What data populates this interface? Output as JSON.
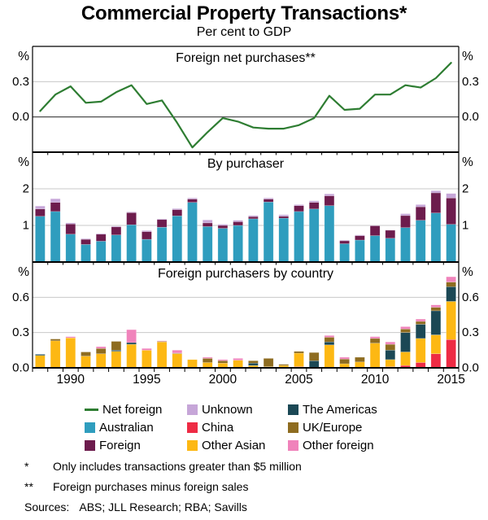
{
  "title": "Commercial Property Transactions*",
  "subtitle": "Per cent to GDP",
  "legend": {
    "items": [
      {
        "label": "Net foreign",
        "color": "#2e7d32",
        "shape": "line"
      },
      {
        "label": "Australian",
        "color": "#2f9dbe",
        "shape": "square"
      },
      {
        "label": "Foreign",
        "color": "#6d1c4d",
        "shape": "square"
      },
      {
        "label": "Unknown",
        "color": "#c6a6d8",
        "shape": "square"
      },
      {
        "label": "China",
        "color": "#ee2b44",
        "shape": "square"
      },
      {
        "label": "Other Asian",
        "color": "#fdb813",
        "shape": "square"
      },
      {
        "label": "The Americas",
        "color": "#1b4855",
        "shape": "square"
      },
      {
        "label": "UK/Europe",
        "color": "#8e6c20",
        "shape": "square"
      },
      {
        "label": "Other foreign",
        "color": "#f083bb",
        "shape": "square"
      }
    ]
  },
  "footnotes": [
    {
      "marker": "*",
      "text": "Only includes transactions greater than $5 million"
    },
    {
      "marker": "**",
      "text": "Foreign purchases minus foreign sales"
    }
  ],
  "sources": {
    "label": "Sources:",
    "text": "ABS; JLL Research; RBA; Savills"
  },
  "chart_data": {
    "type": "multi-panel",
    "years": [
      1988,
      1989,
      1990,
      1991,
      1992,
      1993,
      1994,
      1995,
      1996,
      1997,
      1998,
      1999,
      2000,
      2001,
      2002,
      2003,
      2004,
      2005,
      2006,
      2007,
      2008,
      2009,
      2010,
      2011,
      2012,
      2013,
      2014,
      2015
    ],
    "x_tick_labels": [
      1990,
      1995,
      2000,
      2005,
      2010,
      2015
    ],
    "grid_color": "#c8c8c8",
    "zero_line_color": "#404040",
    "panels": [
      {
        "title": "Foreign net purchases**",
        "type": "line",
        "unit": "%",
        "ylim": [
          -0.3,
          0.6
        ],
        "gridlines": [
          0.0,
          0.3
        ],
        "yticks": [
          {
            "value": 0.0,
            "label": "0.0"
          },
          {
            "value": 0.3,
            "label": "0.3"
          }
        ],
        "series": [
          {
            "name": "Net foreign",
            "color": "#2e7d32",
            "values": [
              0.05,
              0.19,
              0.26,
              0.12,
              0.13,
              0.21,
              0.27,
              0.11,
              0.14,
              -0.05,
              -0.26,
              -0.13,
              -0.01,
              -0.04,
              -0.09,
              -0.1,
              -0.1,
              -0.07,
              -0.01,
              0.18,
              0.06,
              0.07,
              0.19,
              0.19,
              0.27,
              0.25,
              0.33,
              0.46
            ]
          }
        ]
      },
      {
        "title": "By purchaser",
        "type": "stacked-bar",
        "unit": "%",
        "ylim": [
          0,
          3
        ],
        "gridlines": [
          1,
          2
        ],
        "yticks": [
          {
            "value": 1,
            "label": "1"
          },
          {
            "value": 2,
            "label": "2"
          }
        ],
        "series": [
          {
            "name": "Australian",
            "color": "#2f9dbe",
            "values": [
              1.25,
              1.38,
              0.76,
              0.48,
              0.57,
              0.74,
              1.02,
              0.62,
              0.95,
              1.26,
              1.63,
              0.97,
              0.92,
              1.0,
              1.18,
              1.64,
              1.2,
              1.38,
              1.45,
              1.54,
              0.5,
              0.6,
              0.72,
              0.65,
              0.94,
              1.14,
              1.34,
              1.03
            ]
          },
          {
            "name": "Foreign",
            "color": "#6d1c4d",
            "values": [
              0.2,
              0.25,
              0.28,
              0.14,
              0.19,
              0.22,
              0.33,
              0.21,
              0.21,
              0.17,
              0.09,
              0.1,
              0.08,
              0.1,
              0.06,
              0.08,
              0.05,
              0.16,
              0.18,
              0.27,
              0.08,
              0.12,
              0.27,
              0.22,
              0.33,
              0.37,
              0.55,
              0.72
            ]
          },
          {
            "name": "Unknown",
            "color": "#c6a6d8",
            "values": [
              0.08,
              0.1,
              0.03,
              0.02,
              0.02,
              0.02,
              0.02,
              0.03,
              0.02,
              0.03,
              0.03,
              0.08,
              0.03,
              0.04,
              0.03,
              0.03,
              0.04,
              0.03,
              0.04,
              0.05,
              0.02,
              0.02,
              0.01,
              0.01,
              0.05,
              0.06,
              0.06,
              0.12
            ]
          }
        ]
      },
      {
        "title": "Foreign purchasers by country",
        "type": "stacked-bar",
        "unit": "%",
        "ylim": [
          0,
          0.9
        ],
        "gridlines": [
          0.3,
          0.6
        ],
        "yticks": [
          {
            "value": 0.0,
            "label": "0.0"
          },
          {
            "value": 0.3,
            "label": "0.3"
          },
          {
            "value": 0.6,
            "label": "0.6"
          }
        ],
        "series": [
          {
            "name": "China",
            "color": "#ee2b44",
            "values": [
              0,
              0,
              0,
              0,
              0,
              0,
              0,
              0,
              0,
              0,
              0,
              0,
              0,
              0,
              0,
              0,
              0,
              0.01,
              0,
              0,
              0,
              0,
              0,
              0.01,
              0.02,
              0.045,
              0.12,
              0.24
            ]
          },
          {
            "name": "Other Asian",
            "color": "#fdb813",
            "values": [
              0.105,
              0.23,
              0.255,
              0.1,
              0.12,
              0.14,
              0.2,
              0.15,
              0.22,
              0.12,
              0.07,
              0.045,
              0.04,
              0.065,
              0.02,
              0.01,
              0.02,
              0.115,
              0,
              0.195,
              0.035,
              0.05,
              0.21,
              0.06,
              0.115,
              0.205,
              0.16,
              0.325
            ]
          },
          {
            "name": "The Americas",
            "color": "#1b4855",
            "values": [
              0.01,
              0,
              0,
              0,
              0,
              0.01,
              0.015,
              0,
              0,
              0,
              0,
              0,
              0,
              0,
              0.02,
              0,
              0,
              0,
              0.06,
              0.025,
              0,
              0,
              0,
              0.08,
              0.165,
              0.12,
              0.205,
              0.125
            ]
          },
          {
            "name": "UK/Europe",
            "color": "#8e6c20",
            "values": [
              0,
              0.015,
              0,
              0.035,
              0.045,
              0.075,
              0,
              0,
              0.005,
              0.005,
              0,
              0.035,
              0.02,
              0,
              0.02,
              0.07,
              0.01,
              0.015,
              0.07,
              0.04,
              0.04,
              0.04,
              0.04,
              0.05,
              0.03,
              0.025,
              0.03,
              0.04
            ]
          },
          {
            "name": "Other foreign",
            "color": "#f083bb",
            "values": [
              0,
              0,
              0.01,
              0,
              0.015,
              0,
              0.11,
              0.015,
              0.005,
              0.025,
              0,
              0.01,
              0.01,
              0.015,
              0,
              0,
              0,
              0,
              0,
              0.015,
              0.015,
              0,
              0.015,
              0.02,
              0.02,
              0.02,
              0.02,
              0.045
            ]
          }
        ]
      }
    ]
  }
}
